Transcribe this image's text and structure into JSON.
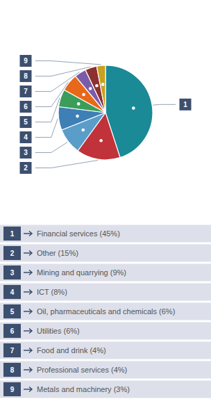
{
  "chart_data": {
    "type": "pie",
    "categories": [
      "Financial services (45%)",
      "Other (15%)",
      "Mining and quarrying (9%)",
      "ICT (8%)",
      "Oil, pharmaceuticals and chemicals (6%)",
      "Utilities (6%)",
      "Food and drink (4%)",
      "Professional services (4%)",
      "Metals and machinery (3%)"
    ],
    "values": [
      45,
      15,
      9,
      8,
      6,
      6,
      4,
      4,
      3
    ],
    "colors": [
      "#1a8a96",
      "#c0333a",
      "#5b9dc9",
      "#3e7fb5",
      "#3a9e5a",
      "#e8681a",
      "#7b5ca8",
      "#8c3030",
      "#c9a020"
    ],
    "annotations": [
      "1",
      "2",
      "3",
      "4",
      "5",
      "6",
      "7",
      "8",
      "9"
    ],
    "legend": "bottom"
  }
}
